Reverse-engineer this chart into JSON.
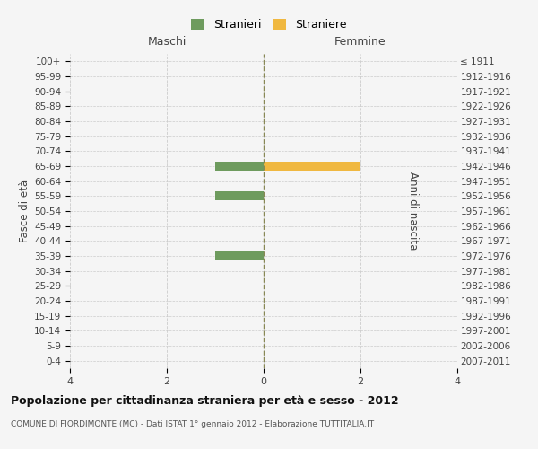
{
  "age_groups": [
    "0-4",
    "5-9",
    "10-14",
    "15-19",
    "20-24",
    "25-29",
    "30-34",
    "35-39",
    "40-44",
    "45-49",
    "50-54",
    "55-59",
    "60-64",
    "65-69",
    "70-74",
    "75-79",
    "80-84",
    "85-89",
    "90-94",
    "95-99",
    "100+"
  ],
  "birth_years": [
    "2007-2011",
    "2002-2006",
    "1997-2001",
    "1992-1996",
    "1987-1991",
    "1982-1986",
    "1977-1981",
    "1972-1976",
    "1967-1971",
    "1962-1966",
    "1957-1961",
    "1952-1956",
    "1947-1951",
    "1942-1946",
    "1937-1941",
    "1932-1936",
    "1927-1931",
    "1922-1926",
    "1917-1921",
    "1912-1916",
    "≤ 1911"
  ],
  "males": [
    0,
    0,
    0,
    0,
    0,
    0,
    0,
    1,
    0,
    0,
    0,
    1,
    0,
    1,
    0,
    0,
    0,
    0,
    0,
    0,
    0
  ],
  "females": [
    0,
    0,
    0,
    0,
    0,
    0,
    0,
    0,
    0,
    0,
    0,
    0,
    0,
    2,
    0,
    0,
    0,
    0,
    0,
    0,
    0
  ],
  "male_color": "#6e9b5e",
  "female_color": "#f0b840",
  "xlim": 4,
  "title_main": "Popolazione per cittadinanza straniera per età e sesso - 2012",
  "title_sub": "COMUNE DI FIORDIMONTE (MC) - Dati ISTAT 1° gennaio 2012 - Elaborazione TUTTITALIA.IT",
  "ylabel_left": "Fasce di età",
  "ylabel_right": "Anni di nascita",
  "legend_male": "Stranieri",
  "legend_female": "Straniere",
  "label_maschi": "Maschi",
  "label_femmine": "Femmine",
  "bg_color": "#f5f5f5",
  "grid_color": "#cccccc"
}
